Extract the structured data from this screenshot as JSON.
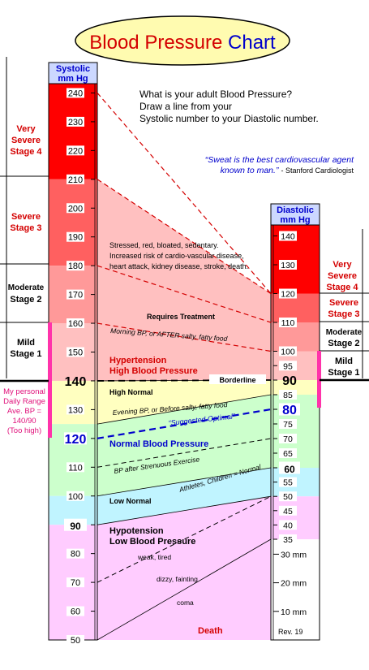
{
  "title": {
    "part1": "Blood Pressure",
    "part2": "Chart",
    "color1": "#d40000",
    "color2": "#0000cc",
    "ellipse_fill": "#fffbb0"
  },
  "systolic_header": {
    "line1": "Systolic",
    "line2": "mm Hg"
  },
  "diastolic_header": {
    "line1": "Diastolic",
    "line2": "mm Hg"
  },
  "instructions": {
    "line1": "What is your adult Blood Pressure?",
    "line2": "Draw a line from your",
    "line3": "Systolic number to your Diastolic number."
  },
  "quote": {
    "line1": "“Sweat is the best cardiovascular agent",
    "line2": "known to man.”",
    "attribution": "- Stanford Cardiologist"
  },
  "left_stages": [
    {
      "line1": "Very",
      "line2": "Severe",
      "line3": "Stage 4",
      "color": "#d40000"
    },
    {
      "line1": "Severe",
      "line2": "Stage 3",
      "color": "#d40000"
    },
    {
      "line1": "Moderate",
      "line2": "Stage 2",
      "color": "#000000"
    },
    {
      "line1": "Mild",
      "line2": "Stage 1",
      "color": "#000000"
    }
  ],
  "right_stages": [
    {
      "line1": "Very",
      "line2": "Severe",
      "line3": "Stage 4",
      "color": "#d40000"
    },
    {
      "line1": "Severe",
      "line2": "Stage 3",
      "color": "#d40000"
    },
    {
      "line1": "Moderate",
      "line2": "Stage 2",
      "color": "#000000"
    },
    {
      "line1": "Mild",
      "line2": "Stage 1",
      "color": "#000000"
    }
  ],
  "personal": {
    "line1": "My personal",
    "line2": "Daily Range",
    "line3": "Ave. BP =",
    "line4": "140/90",
    "line5": "(Too high)",
    "color": "#e0107a"
  },
  "systolic_ticks": [
    {
      "label": "240",
      "value": 240
    },
    {
      "label": "230",
      "value": 230
    },
    {
      "label": "220",
      "value": 220
    },
    {
      "label": "210",
      "value": 210
    },
    {
      "label": "200",
      "value": 200
    },
    {
      "label": "190",
      "value": 190
    },
    {
      "label": "180",
      "value": 180
    },
    {
      "label": "170",
      "value": 170
    },
    {
      "label": "160",
      "value": 160
    },
    {
      "label": "150",
      "value": 150
    },
    {
      "label": "140",
      "value": 140
    },
    {
      "label": "130",
      "value": 130
    },
    {
      "label": "120",
      "value": 120
    },
    {
      "label": "110",
      "value": 110
    },
    {
      "label": "100",
      "value": 100
    },
    {
      "label": "90",
      "value": 90
    },
    {
      "label": "80",
      "value": 80
    },
    {
      "label": "70",
      "value": 70
    },
    {
      "label": "60",
      "value": 60
    },
    {
      "label": "50",
      "value": 50
    }
  ],
  "diastolic_ticks": [
    {
      "label": "140",
      "value": 140
    },
    {
      "label": "130",
      "value": 130
    },
    {
      "label": "120",
      "value": 120
    },
    {
      "label": "110",
      "value": 110
    },
    {
      "label": "100",
      "value": 100
    },
    {
      "label": "95",
      "value": 95
    },
    {
      "label": "90",
      "value": 90
    },
    {
      "label": "85",
      "value": 85
    },
    {
      "label": "80",
      "value": 80
    },
    {
      "label": "75",
      "value": 75
    },
    {
      "label": "70",
      "value": 70
    },
    {
      "label": "65",
      "value": 65
    },
    {
      "label": "60",
      "value": 60
    },
    {
      "label": "55",
      "value": 55
    },
    {
      "label": "50",
      "value": 50
    },
    {
      "label": "45",
      "value": 45
    },
    {
      "label": "40",
      "value": 40
    },
    {
      "label": "35",
      "value": 35
    }
  ],
  "mm_ticks": [
    {
      "label": "30 mm",
      "value": 30
    },
    {
      "label": "20 mm",
      "value": 20
    },
    {
      "label": "10 mm",
      "value": 10
    }
  ],
  "revision": "Rev. 19",
  "zones": {
    "hypertension": {
      "line1": "Hypertension",
      "line2": "High  Blood  Pressure",
      "color": "#d40000"
    },
    "borderline": "Borderline",
    "requires_treatment": "Requires Treatment",
    "high_normal": "High Normal",
    "normal": {
      "label": "Normal Blood Pressure",
      "color": "#0000cc"
    },
    "low_normal": "Low Normal",
    "hypotension": {
      "line1": "Hypotension",
      "line2": "Low  Blood  Pressure"
    },
    "death": {
      "label": "Death",
      "color": "#d40000"
    }
  },
  "notes": {
    "stressed": [
      "Stressed, red, bloated, sedentary.",
      "Increased risk of cardio-vascular disease,",
      "heart attack, kidney disease, stroke, death."
    ],
    "morning": "Morning BP, or AFTER salty, fatty food",
    "evening": "Evening BP, or Before salty, fatty food",
    "suggested": "“Suggested Optimal”",
    "exercise": "BP after Strenuous Exercise",
    "athletes": "Athletes, Children = Normal",
    "weak": "weak, tired",
    "dizzy": "dizzy, fainting",
    "coma": "coma"
  },
  "colors": {
    "stage4": "#ff0000",
    "stage3": "#ff6060",
    "stage2": "#ff9999",
    "stage1": "#ffc0c0",
    "high_normal": "#ffffc0",
    "normal": "#ccffcc",
    "low_normal": "#c0f4ff",
    "hypotension": "#ffccff",
    "header": "#ccd8ff",
    "label_box": "#ffffff",
    "pink_bar": "#ff33aa",
    "dashed_red": "#d40000",
    "dashed_blue": "#0000cc"
  }
}
